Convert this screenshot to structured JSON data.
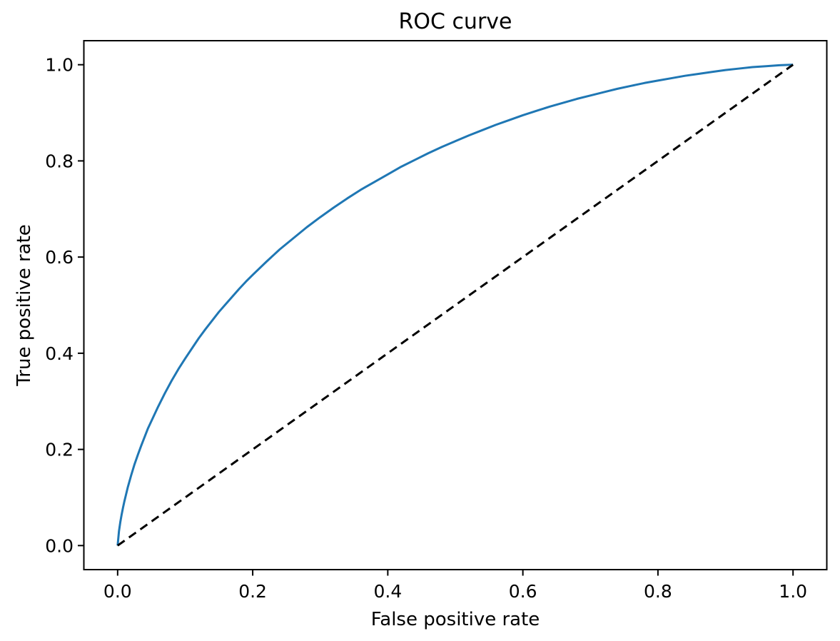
{
  "chart_data": {
    "type": "line",
    "title": "ROC curve",
    "xlabel": "False positive rate",
    "ylabel": "True positive rate",
    "xlim": [
      -0.05,
      1.05
    ],
    "ylim": [
      -0.05,
      1.05
    ],
    "grid": false,
    "legend": false,
    "background_color": "#ffffff",
    "spine_color": "#000000",
    "xticks": {
      "values": [
        0.0,
        0.2,
        0.4,
        0.6,
        0.8,
        1.0
      ],
      "labels": [
        "0.0",
        "0.2",
        "0.4",
        "0.6",
        "0.8",
        "1.0"
      ]
    },
    "yticks": {
      "values": [
        0.0,
        0.2,
        0.4,
        0.6,
        0.8,
        1.0
      ],
      "labels": [
        "0.0",
        "0.2",
        "0.4",
        "0.6",
        "0.8",
        "1.0"
      ]
    },
    "series": [
      {
        "name": "roc-curve",
        "color": "#1f77b4",
        "line_style": "solid",
        "line_width": 3,
        "x": [
          0,
          0.002,
          0.004,
          0.006,
          0.008,
          0.01,
          0.015,
          0.02,
          0.025,
          0.03,
          0.035,
          0.04,
          0.045,
          0.05,
          0.06,
          0.07,
          0.08,
          0.09,
          0.1,
          0.11,
          0.12,
          0.13,
          0.14,
          0.15,
          0.16,
          0.17,
          0.18,
          0.19,
          0.2,
          0.22,
          0.24,
          0.26,
          0.28,
          0.3,
          0.32,
          0.34,
          0.36,
          0.38,
          0.4,
          0.42,
          0.44,
          0.46,
          0.48,
          0.5,
          0.52,
          0.54,
          0.56,
          0.58,
          0.6,
          0.62,
          0.64,
          0.66,
          0.68,
          0.7,
          0.72,
          0.74,
          0.76,
          0.78,
          0.8,
          0.82,
          0.84,
          0.86,
          0.88,
          0.9,
          0.92,
          0.94,
          0.96,
          0.98,
          1.0
        ],
        "y": [
          0,
          0.03,
          0.049,
          0.065,
          0.079,
          0.092,
          0.121,
          0.146,
          0.169,
          0.189,
          0.208,
          0.226,
          0.244,
          0.259,
          0.289,
          0.317,
          0.343,
          0.367,
          0.389,
          0.41,
          0.431,
          0.45,
          0.468,
          0.486,
          0.502,
          0.518,
          0.534,
          0.549,
          0.563,
          0.59,
          0.616,
          0.639,
          0.662,
          0.683,
          0.703,
          0.722,
          0.74,
          0.756,
          0.772,
          0.788,
          0.802,
          0.816,
          0.829,
          0.841,
          0.853,
          0.864,
          0.875,
          0.885,
          0.895,
          0.904,
          0.913,
          0.921,
          0.929,
          0.936,
          0.943,
          0.95,
          0.956,
          0.962,
          0.967,
          0.972,
          0.977,
          0.981,
          0.985,
          0.989,
          0.992,
          0.995,
          0.997,
          0.999,
          1.0
        ]
      },
      {
        "name": "chance-diagonal",
        "color": "#000000",
        "line_style": "dashed",
        "line_width": 3,
        "x": [
          0,
          1
        ],
        "y": [
          0,
          1
        ]
      }
    ]
  }
}
